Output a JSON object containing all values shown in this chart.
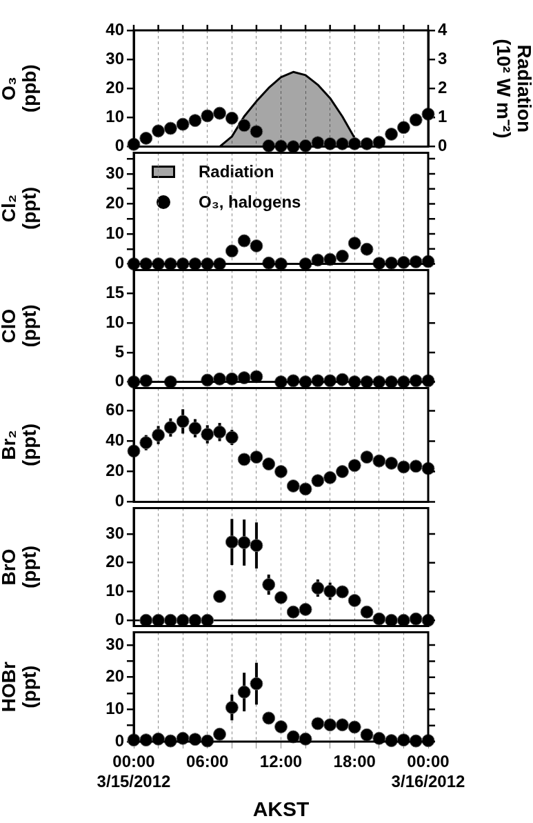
{
  "chart_data": [
    {
      "type": "scatter",
      "ylabel": "O₃ (ppb)",
      "y2label": "Radiation (10² W m⁻²)",
      "x": [
        0,
        1,
        2,
        3,
        4,
        5,
        6,
        7,
        8,
        9,
        10,
        11,
        12,
        13,
        14,
        15,
        16,
        17,
        18,
        19,
        20,
        21,
        22,
        23,
        24
      ],
      "xlim": [
        0,
        24
      ],
      "xticks": [
        {
          "value": 0,
          "label": null
        },
        {
          "value": 2,
          "label": null
        },
        {
          "value": 4,
          "label": null
        },
        {
          "value": 6,
          "label": null
        },
        {
          "value": 8,
          "label": null
        },
        {
          "value": 10,
          "label": null
        },
        {
          "value": 12,
          "label": null
        },
        {
          "value": 14,
          "label": null
        },
        {
          "value": 16,
          "label": null
        },
        {
          "value": 18,
          "label": null
        },
        {
          "value": 20,
          "label": null
        },
        {
          "value": 22,
          "label": null
        },
        {
          "value": 24,
          "label": null
        }
      ],
      "ylim": [
        0,
        40
      ],
      "yticks": [
        0,
        10,
        20,
        30,
        40
      ],
      "y2lim": [
        0,
        4
      ],
      "y2ticks": [
        0,
        1,
        2,
        3,
        4
      ],
      "grid": "x",
      "marker": "circle",
      "legend": "bottom left",
      "tick_labels": "y",
      "series": [
        {
          "name": "Radiation",
          "type": "area",
          "axis": "y2",
          "color": "#000000",
          "marker": "none",
          "x": [
            0,
            7,
            8,
            9,
            10,
            11,
            12,
            13,
            14,
            15,
            16,
            17,
            18,
            18.5,
            24
          ],
          "values": [
            0,
            0,
            0.35,
            1.04,
            1.56,
            2.02,
            2.39,
            2.57,
            2.46,
            2.13,
            1.67,
            1.04,
            0.3,
            0,
            0
          ]
        },
        {
          "name": "O₃, halogens",
          "color": "#000000",
          "values": [
            0.8,
            2.9,
            5.4,
            6.3,
            7.7,
            9.0,
            10.6,
            11.5,
            9.8,
            7.3,
            5.2,
            0.3,
            0.2,
            0,
            0.3,
            1.4,
            1,
            1,
            1,
            1,
            1.5,
            4.3,
            6.6,
            9.2,
            11.2
          ]
        }
      ]
    },
    {
      "type": "scatter",
      "ylabel": "Cl₂ (ppt)",
      "x": [
        0,
        1,
        2,
        3,
        4,
        5,
        6,
        7,
        8,
        9,
        10,
        11,
        12,
        13,
        14,
        15,
        16,
        17,
        18,
        19,
        20,
        21,
        22,
        23,
        24
      ],
      "xlim": [
        0,
        24
      ],
      "xticks": [
        {
          "value": 0,
          "label": null
        },
        {
          "value": 2,
          "label": null
        },
        {
          "value": 4,
          "label": null
        },
        {
          "value": 6,
          "label": null
        },
        {
          "value": 8,
          "label": null
        },
        {
          "value": 10,
          "label": null
        },
        {
          "value": 12,
          "label": null
        },
        {
          "value": 14,
          "label": null
        },
        {
          "value": 16,
          "label": null
        },
        {
          "value": 18,
          "label": null
        },
        {
          "value": 20,
          "label": null
        },
        {
          "value": 22,
          "label": null
        },
        {
          "value": 24,
          "label": null
        }
      ],
      "ylim": [
        0,
        37
      ],
      "yticks": [
        0,
        {
          "value": 5,
          "label": null
        },
        10,
        {
          "value": 15,
          "label": null
        },
        20,
        {
          "value": 25,
          "label": null
        },
        30,
        {
          "value": 35,
          "label": null
        }
      ],
      "grid": "x",
      "marker": "circle",
      "tick_labels": "y",
      "series": [
        {
          "color": "#000000",
          "values": [
            0,
            0,
            0,
            0,
            0,
            0,
            0,
            0,
            4.3,
            7.7,
            6.0,
            0.3,
            0,
            null,
            0,
            1.3,
            1.5,
            2.6,
            6.9,
            4.9,
            0.2,
            0.3,
            0.5,
            0.7,
            0.8
          ]
        }
      ]
    },
    {
      "type": "scatter",
      "ylabel": "ClO (ppt)",
      "x": [
        0,
        1,
        2,
        3,
        4,
        5,
        6,
        7,
        8,
        9,
        10,
        11,
        12,
        13,
        14,
        15,
        16,
        17,
        18,
        19,
        20,
        21,
        22,
        23,
        24
      ],
      "xlim": [
        0,
        24
      ],
      "xticks": [
        {
          "value": 0,
          "label": null
        },
        {
          "value": 2,
          "label": null
        },
        {
          "value": 4,
          "label": null
        },
        {
          "value": 6,
          "label": null
        },
        {
          "value": 8,
          "label": null
        },
        {
          "value": 10,
          "label": null
        },
        {
          "value": 12,
          "label": null
        },
        {
          "value": 14,
          "label": null
        },
        {
          "value": 16,
          "label": null
        },
        {
          "value": 18,
          "label": null
        },
        {
          "value": 20,
          "label": null
        },
        {
          "value": 22,
          "label": null
        },
        {
          "value": 24,
          "label": null
        }
      ],
      "ylim": [
        0,
        19
      ],
      "yticks": [
        0,
        5,
        10,
        15
      ],
      "grid": "x",
      "marker": "circle",
      "tick_labels": "y",
      "series": [
        {
          "color": "#000000",
          "values": [
            0,
            0.2,
            null,
            0,
            null,
            null,
            0.3,
            0.5,
            0.5,
            0.7,
            0.9,
            null,
            0,
            0.2,
            0,
            0.2,
            0.2,
            0.4,
            0,
            0,
            0,
            0,
            0,
            0.2,
            0.2
          ]
        }
      ]
    },
    {
      "type": "scatter",
      "ylabel": "Br₂ (ppt)",
      "x": [
        0,
        1,
        2,
        3,
        4,
        5,
        6,
        7,
        8,
        9,
        10,
        11,
        12,
        13,
        14,
        15,
        16,
        17,
        18,
        19,
        20,
        21,
        22,
        23,
        24
      ],
      "xlim": [
        0,
        24
      ],
      "xticks": [
        {
          "value": 0,
          "label": null
        },
        {
          "value": 2,
          "label": null
        },
        {
          "value": 4,
          "label": null
        },
        {
          "value": 6,
          "label": null
        },
        {
          "value": 8,
          "label": null
        },
        {
          "value": 10,
          "label": null
        },
        {
          "value": 12,
          "label": null
        },
        {
          "value": 14,
          "label": null
        },
        {
          "value": 16,
          "label": null
        },
        {
          "value": 18,
          "label": null
        },
        {
          "value": 20,
          "label": null
        },
        {
          "value": 22,
          "label": null
        },
        {
          "value": 24,
          "label": null
        }
      ],
      "ylim": [
        0,
        75
      ],
      "yticks": [
        0,
        20,
        40,
        60
      ],
      "grid": "x",
      "marker": "circle",
      "tick_labels": "y",
      "series": [
        {
          "color": "#000000",
          "values": [
            33.5,
            39,
            44,
            49,
            53,
            48.5,
            44.5,
            46,
            42.5,
            28,
            29.5,
            25,
            20,
            10.5,
            8.5,
            14,
            16,
            20,
            24,
            29.5,
            27,
            25.5,
            23,
            23.5,
            22
          ],
          "errors": [
            null,
            5,
            6,
            6,
            8,
            6,
            6,
            6,
            5,
            null,
            null,
            null,
            null,
            null,
            null,
            null,
            null,
            null,
            null,
            null,
            null,
            null,
            null,
            null,
            null
          ]
        }
      ]
    },
    {
      "type": "scatter",
      "ylabel": "BrO (ppt)",
      "x": [
        1,
        2,
        3,
        4,
        5,
        6,
        7,
        8,
        9,
        10,
        11,
        12,
        13,
        14,
        15,
        16,
        17,
        18,
        19,
        20,
        21,
        22,
        23,
        24
      ],
      "xlim": [
        0,
        24
      ],
      "xticks": [
        {
          "value": 0,
          "label": null
        },
        {
          "value": 2,
          "label": null
        },
        {
          "value": 4,
          "label": null
        },
        {
          "value": 6,
          "label": null
        },
        {
          "value": 8,
          "label": null
        },
        {
          "value": 10,
          "label": null
        },
        {
          "value": 12,
          "label": null
        },
        {
          "value": 14,
          "label": null
        },
        {
          "value": 16,
          "label": null
        },
        {
          "value": 18,
          "label": null
        },
        {
          "value": 20,
          "label": null
        },
        {
          "value": 22,
          "label": null
        },
        {
          "value": 24,
          "label": null
        }
      ],
      "ylim": [
        -2,
        39
      ],
      "yticks": [
        0,
        10,
        20,
        30
      ],
      "grid": "x",
      "marker": "circle",
      "tick_labels": "y",
      "ref_lines": [
        {
          "axis": "y",
          "value": 0,
          "color": "#000000"
        }
      ],
      "series": [
        {
          "color": "#000000",
          "values": [
            0,
            0,
            0,
            0,
            0,
            0,
            8.3,
            27.2,
            27,
            26,
            12.4,
            7.9,
            2.9,
            3.8,
            11.2,
            10.1,
            9.9,
            6.9,
            2.9,
            0.5,
            0,
            0,
            0.5,
            0
          ],
          "errors": [
            null,
            null,
            null,
            null,
            null,
            null,
            null,
            8,
            8,
            8,
            3.5,
            null,
            null,
            null,
            3,
            3,
            null,
            null,
            null,
            null,
            null,
            null,
            null,
            null
          ]
        }
      ]
    },
    {
      "type": "scatter",
      "ylabel": "HOBr (ppt)",
      "xlabel": "AKST",
      "x": [
        0,
        1,
        2,
        3,
        4,
        5,
        6,
        7,
        8,
        9,
        10,
        11,
        12,
        13,
        14,
        15,
        16,
        17,
        18,
        19,
        20,
        21,
        22,
        23,
        24
      ],
      "xlim": [
        0,
        24
      ],
      "xticks": [
        {
          "value": 0,
          "label": "00:00\n3/15/2012"
        },
        {
          "value": 2,
          "label": null
        },
        {
          "value": 4,
          "label": null
        },
        {
          "value": 6,
          "label": "06:00"
        },
        {
          "value": 8,
          "label": null
        },
        {
          "value": 10,
          "label": null
        },
        {
          "value": 12,
          "label": "12:00"
        },
        {
          "value": 14,
          "label": null
        },
        {
          "value": 16,
          "label": null
        },
        {
          "value": 18,
          "label": "18:00"
        },
        {
          "value": 20,
          "label": null
        },
        {
          "value": 22,
          "label": null
        },
        {
          "value": 24,
          "label": "00:00\n3/16/2012"
        }
      ],
      "ylim": [
        0,
        34
      ],
      "yticks": [
        0,
        {
          "value": 5,
          "label": null
        },
        10,
        {
          "value": 15,
          "label": null
        },
        20,
        {
          "value": 25,
          "label": null
        },
        30
      ],
      "grid": "x",
      "marker": "circle",
      "series": [
        {
          "color": "#000000",
          "values": [
            0.5,
            0.5,
            0.8,
            0.2,
            1,
            0.7,
            0.2,
            2.3,
            10.6,
            15.4,
            18,
            7.3,
            4.6,
            1.5,
            0.8,
            5.6,
            5.2,
            5.2,
            4.5,
            2.1,
            1,
            0.3,
            0.5,
            0.2,
            0.3
          ],
          "errors": [
            null,
            null,
            null,
            null,
            null,
            null,
            null,
            null,
            4,
            6,
            6.5,
            1.5,
            null,
            null,
            null,
            null,
            null,
            null,
            null,
            null,
            null,
            null,
            null,
            null,
            null
          ]
        }
      ]
    }
  ]
}
